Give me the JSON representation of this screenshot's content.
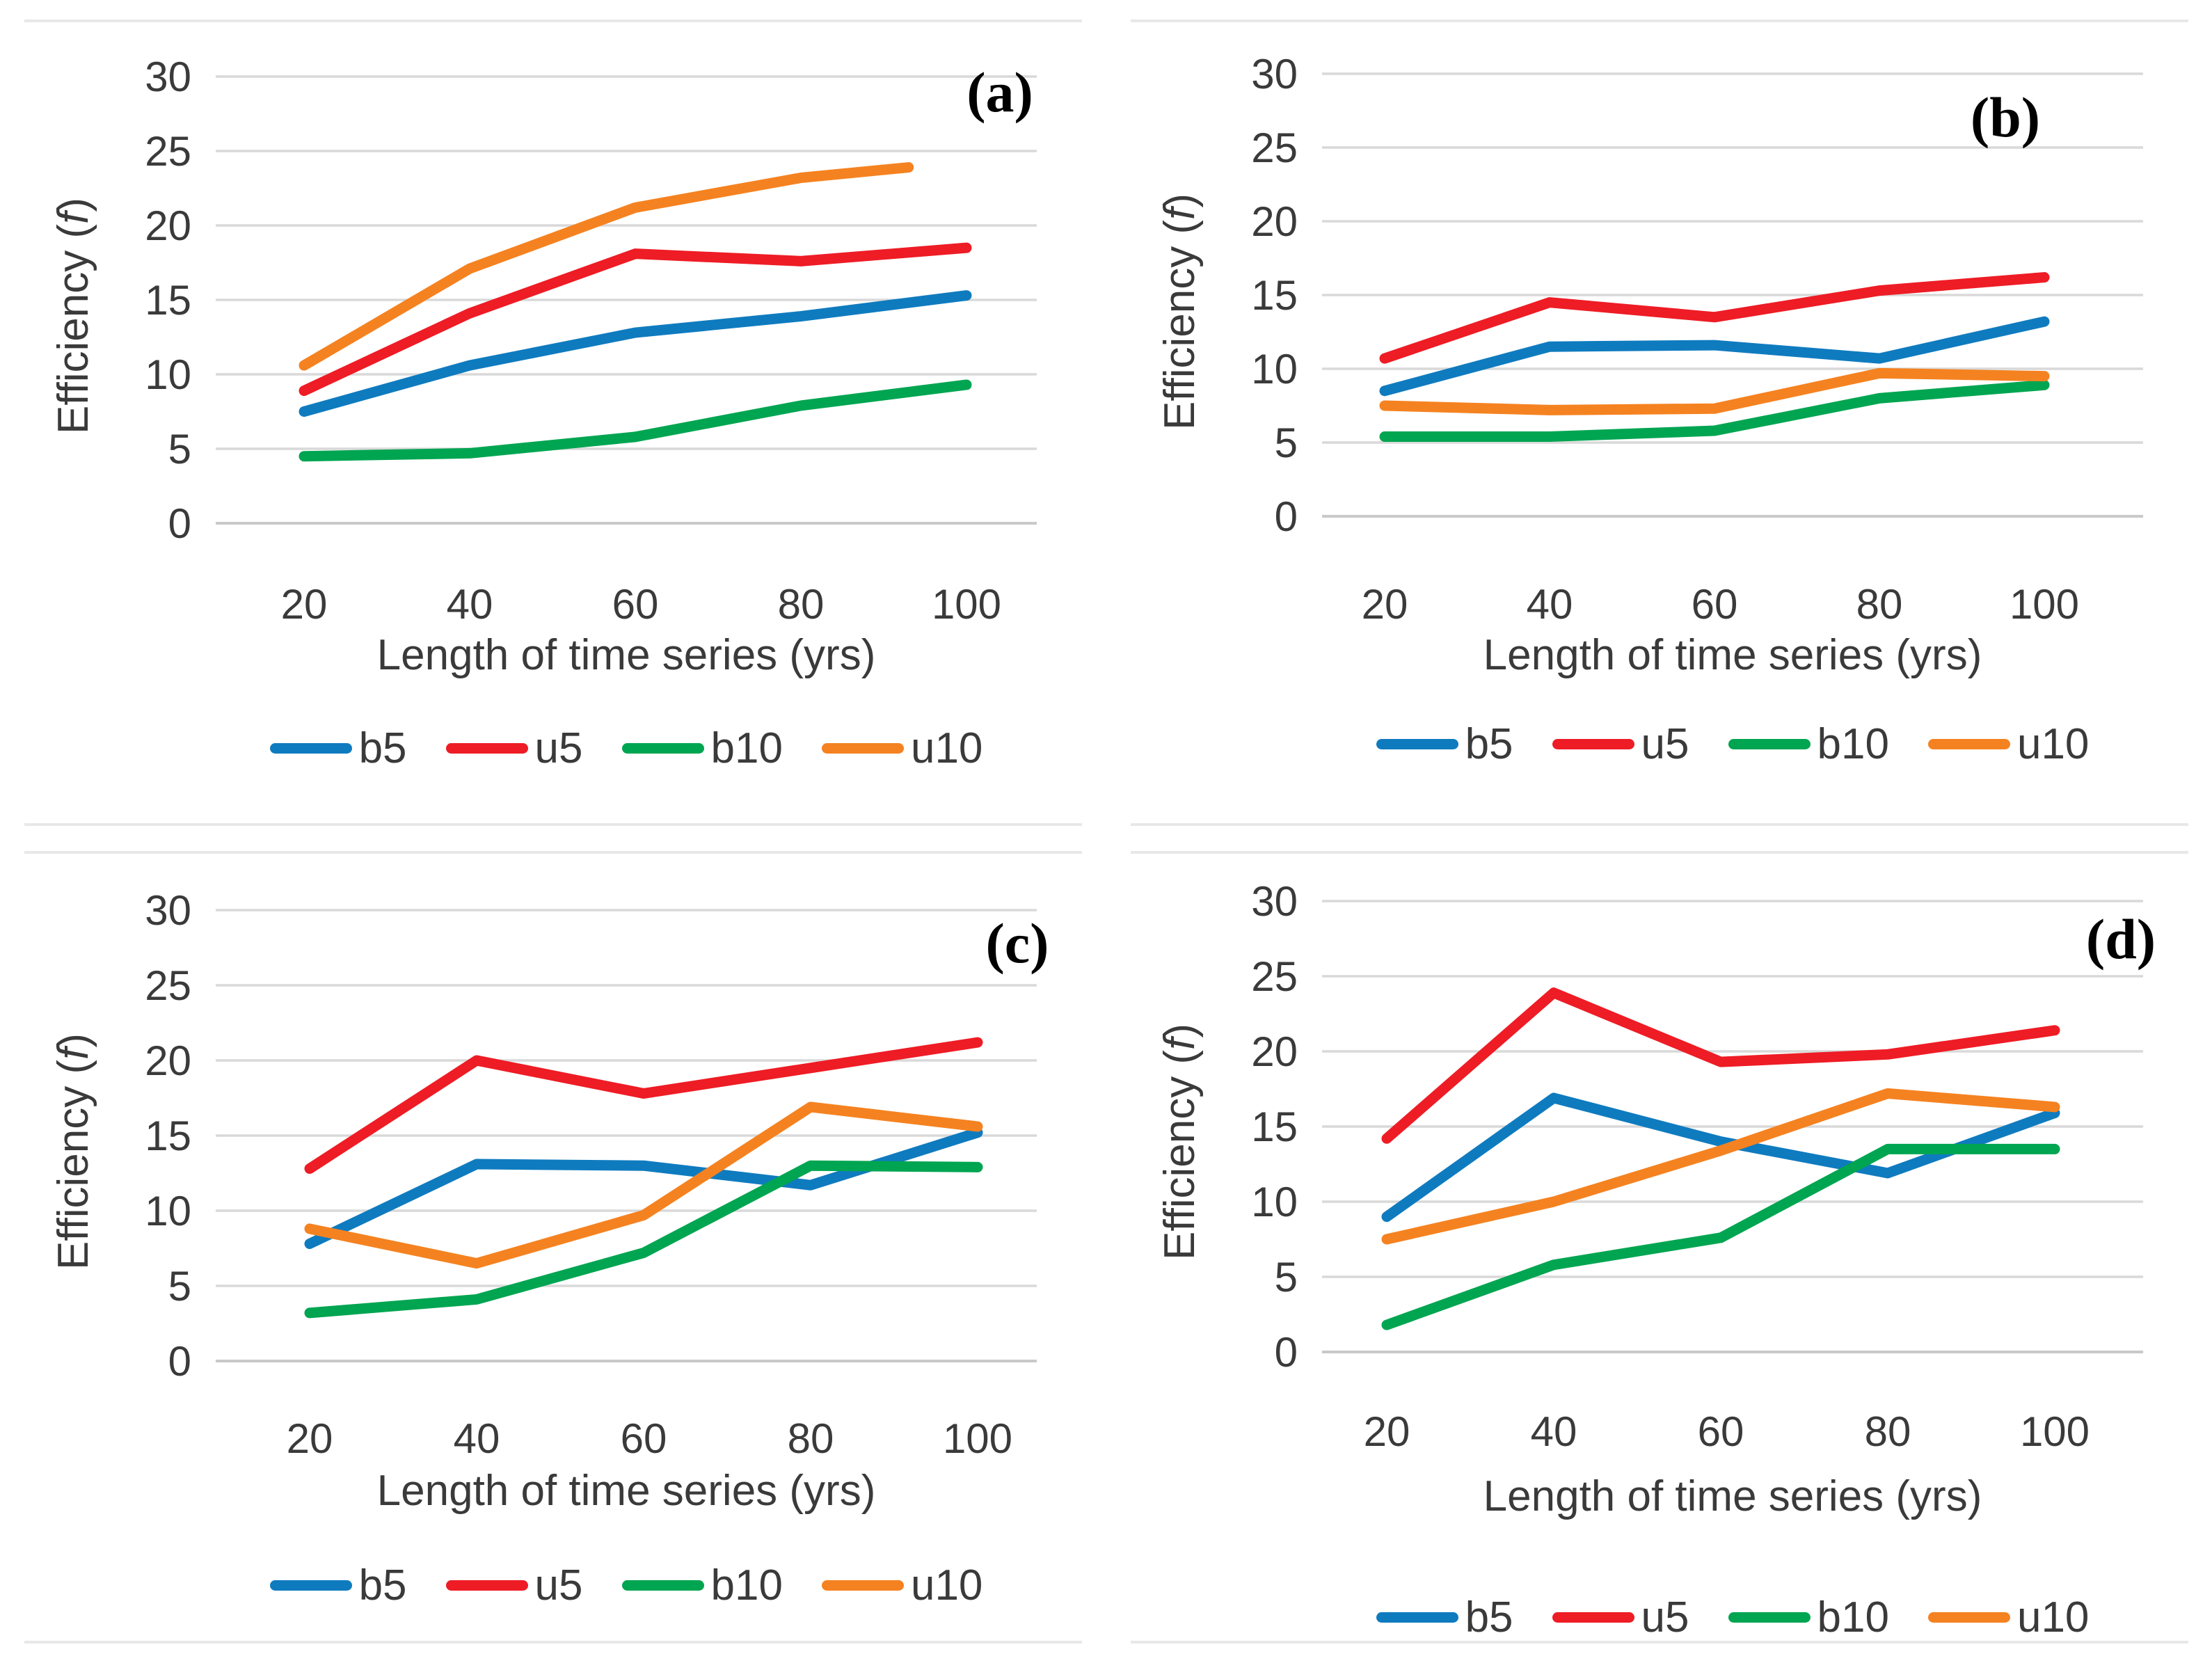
{
  "page": {
    "background": "#ffffff",
    "separator_color": "#e8e8e8",
    "grid_color": "#d9d9d9",
    "axis_line_color": "#c9c9c9",
    "text_color": "#3a3a3a"
  },
  "ylabel_parts": {
    "pre": "Efficiency (",
    "it": "f",
    "post": ")"
  },
  "chart_data": [
    {
      "panel": "(a)",
      "type": "line",
      "title": "",
      "xlabel": "Length of time series (yrs)",
      "ylabel": "Efficiency (f)",
      "ylim": [
        0,
        30
      ],
      "yticks": [
        0,
        5,
        10,
        15,
        20,
        25,
        30
      ],
      "xticks": [
        20,
        40,
        60,
        80,
        100
      ],
      "x": [
        20,
        40,
        60,
        80,
        100
      ],
      "grid": true,
      "legend_position": "bottom",
      "series": [
        {
          "name": "b5",
          "color": "#0F7BBF",
          "values": [
            7.5,
            10.6,
            12.8,
            13.9,
            15.3
          ]
        },
        {
          "name": "u5",
          "color": "#EE1C25",
          "values": [
            8.9,
            14.1,
            18.1,
            17.6,
            18.5
          ]
        },
        {
          "name": "b10",
          "color": "#00A551",
          "values": [
            4.5,
            4.7,
            5.8,
            7.9,
            9.3
          ]
        },
        {
          "name": "u10",
          "color": "#F58220",
          "values": [
            10.6,
            17.1,
            21.2,
            23.2,
            23.9
          ],
          "x": [
            20,
            40,
            60,
            80,
            93
          ]
        }
      ]
    },
    {
      "panel": "(b)",
      "type": "line",
      "title": "",
      "xlabel": "Length of time series (yrs)",
      "ylabel": "Efficiency (f)",
      "ylim": [
        0,
        30
      ],
      "yticks": [
        0,
        5,
        10,
        15,
        20,
        25,
        30
      ],
      "xticks": [
        20,
        40,
        60,
        80,
        100
      ],
      "x": [
        20,
        40,
        60,
        80,
        100
      ],
      "grid": true,
      "legend_position": "bottom",
      "series": [
        {
          "name": "b5",
          "color": "#0F7BBF",
          "values": [
            8.5,
            11.5,
            11.6,
            10.7,
            13.2
          ]
        },
        {
          "name": "u5",
          "color": "#EE1C25",
          "values": [
            10.7,
            14.5,
            13.5,
            15.3,
            16.2
          ]
        },
        {
          "name": "b10",
          "color": "#00A551",
          "values": [
            5.4,
            5.4,
            5.8,
            8.0,
            8.9
          ]
        },
        {
          "name": "u10",
          "color": "#F58220",
          "values": [
            7.5,
            7.2,
            7.3,
            9.7,
            9.5
          ]
        }
      ]
    },
    {
      "panel": "(c)",
      "type": "line",
      "title": "",
      "xlabel": "Length of time series (yrs)",
      "ylabel": "Efficiency (f)",
      "ylim": [
        0,
        30
      ],
      "yticks": [
        0,
        5,
        10,
        15,
        20,
        25,
        30
      ],
      "xticks": [
        20,
        40,
        60,
        80,
        100
      ],
      "x": [
        20,
        40,
        60,
        80,
        100
      ],
      "grid": true,
      "legend_position": "bottom",
      "series": [
        {
          "name": "b5",
          "color": "#0F7BBF",
          "values": [
            7.8,
            13.1,
            13.0,
            11.7,
            15.2
          ]
        },
        {
          "name": "u5",
          "color": "#EE1C25",
          "values": [
            12.8,
            20.0,
            17.8,
            19.5,
            21.2
          ]
        },
        {
          "name": "b10",
          "color": "#00A551",
          "values": [
            3.2,
            4.1,
            7.2,
            13.0,
            12.9
          ]
        },
        {
          "name": "u10",
          "color": "#F58220",
          "values": [
            8.8,
            6.5,
            9.7,
            16.9,
            15.6
          ]
        }
      ]
    },
    {
      "panel": "(d)",
      "type": "line",
      "title": "",
      "xlabel": "Length of time series (yrs)",
      "ylabel": "Efficiency (f)",
      "ylim": [
        0,
        30
      ],
      "yticks": [
        0,
        5,
        10,
        15,
        20,
        25,
        30
      ],
      "xticks": [
        20,
        40,
        60,
        80,
        100
      ],
      "x": [
        20,
        40,
        60,
        80,
        100
      ],
      "grid": true,
      "legend_position": "bottom",
      "series": [
        {
          "name": "b5",
          "color": "#0F7BBF",
          "values": [
            9.0,
            16.9,
            14.0,
            11.9,
            15.9
          ]
        },
        {
          "name": "u5",
          "color": "#EE1C25",
          "values": [
            14.2,
            23.9,
            19.3,
            19.8,
            21.4
          ]
        },
        {
          "name": "b10",
          "color": "#00A551",
          "values": [
            1.8,
            5.8,
            7.6,
            13.5,
            13.5
          ]
        },
        {
          "name": "u10",
          "color": "#F58220",
          "values": [
            7.5,
            10.0,
            13.4,
            17.2,
            16.3
          ]
        }
      ]
    }
  ]
}
